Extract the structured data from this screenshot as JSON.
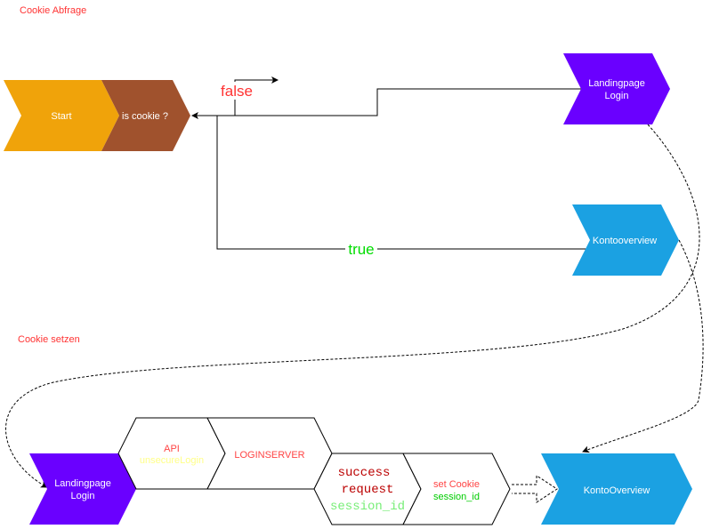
{
  "sections": {
    "cookie_abfrage": "Cookie Abfrage",
    "cookie_setzen": "Cookie setzen"
  },
  "nodes": {
    "start": "Start",
    "is_cookie": "is cookie ?",
    "landing_top": [
      "Landingpage",
      "Login"
    ],
    "konto_top": "Kontooverview",
    "landing_bottom": [
      "Landingpage",
      "Login"
    ],
    "api": [
      "API",
      "unsecureLogin"
    ],
    "loginserver": "LOGINSERVER",
    "success": [
      "success",
      "request",
      "session_id"
    ],
    "set_cookie": [
      "set Cookie",
      "session_id"
    ],
    "konto_bottom": "KontoOverview"
  },
  "edges": {
    "false_label": "false",
    "true_label": "true"
  },
  "colors": {
    "start": "#f0a30a",
    "is_cookie": "#a0522d",
    "landing": "#6a00ff",
    "konto": "#1ba1e2",
    "section_label": "#ff3333"
  }
}
